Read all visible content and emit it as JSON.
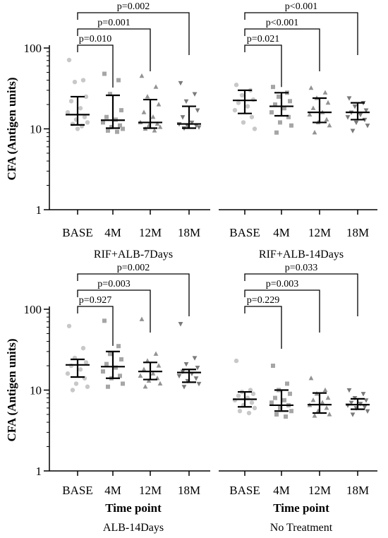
{
  "colors": {
    "BASE": "#c8c8c8",
    "4M": "#a6a6a6",
    "12M": "#939393",
    "18M": "#7a7a7a",
    "line": "#000000"
  },
  "chart_data": [
    {
      "type": "scatter",
      "group": "RIF+ALB-7Days",
      "ylabel": "CFA (Antigen units)",
      "xlabel": "",
      "categories": [
        "BASE",
        "4M",
        "12M",
        "18M"
      ],
      "yscale": "log",
      "ylim": [
        1,
        100
      ],
      "yticks": [
        1,
        10,
        100
      ],
      "summary": {
        "median": [
          15,
          12.8,
          12,
          11.5
        ],
        "q1": [
          11.2,
          10.2,
          10.2,
          10.2
        ],
        "q3": [
          25,
          26,
          23,
          19
        ]
      },
      "points": [
        [
          71,
          40,
          38,
          25,
          22,
          18,
          16,
          14,
          13,
          12,
          11.5,
          10.8,
          10
        ],
        [
          48,
          40,
          27,
          17,
          14,
          13,
          12,
          11,
          10.5,
          10,
          9.5,
          9.2
        ],
        [
          45,
          33,
          25,
          20,
          16,
          14,
          12,
          11.5,
          11,
          10.5,
          10,
          9.5
        ],
        [
          37,
          27,
          22,
          17,
          14,
          12,
          11.5,
          11,
          10.8,
          10.5,
          10.2
        ]
      ],
      "comparisons": [
        {
          "label": "p=0.010",
          "to": "4M"
        },
        {
          "label": "p=0.001",
          "to": "12M"
        },
        {
          "label": "p=0.002",
          "to": "18M"
        }
      ]
    },
    {
      "type": "scatter",
      "group": "RIF+ALB-14Days",
      "ylabel": "",
      "xlabel": "",
      "categories": [
        "BASE",
        "4M",
        "12M",
        "18M"
      ],
      "yscale": "log",
      "ylim": [
        1,
        100
      ],
      "yticks": [
        1,
        10,
        100
      ],
      "summary": {
        "median": [
          22.5,
          19,
          16,
          16
        ],
        "q1": [
          15.5,
          14.5,
          12,
          13
        ],
        "q3": [
          30,
          28,
          24,
          21
        ]
      },
      "points": [
        [
          35,
          30,
          26,
          23,
          21,
          19,
          17,
          14,
          12,
          10
        ],
        [
          33,
          28,
          25,
          22,
          20,
          18,
          16,
          14,
          12,
          11,
          9
        ],
        [
          32,
          28,
          24,
          21,
          18,
          16,
          15,
          13,
          12,
          11,
          9
        ],
        [
          24,
          21,
          19,
          17,
          16,
          15,
          14,
          13,
          12,
          11,
          9.5
        ]
      ],
      "comparisons": [
        {
          "label": "p=0.021",
          "to": "4M"
        },
        {
          "label": "p<0.001",
          "to": "12M"
        },
        {
          "label": "p<0.001",
          "to": "18M"
        }
      ]
    },
    {
      "type": "scatter",
      "group": "ALB-14Days",
      "ylabel": "CFA (Antigen units)",
      "xlabel": "Time point",
      "categories": [
        "BASE",
        "4M",
        "12M",
        "18M"
      ],
      "yscale": "log",
      "ylim": [
        1,
        100
      ],
      "yticks": [
        1,
        10,
        100
      ],
      "summary": {
        "median": [
          20.5,
          19.5,
          17,
          16.5
        ],
        "q1": [
          14.5,
          14,
          13.5,
          12.5
        ],
        "q3": [
          24,
          30,
          22,
          18
        ]
      },
      "points": [
        [
          62,
          33,
          25,
          22,
          20,
          18,
          16,
          14,
          12,
          11,
          10
        ],
        [
          72,
          35,
          28,
          24,
          21,
          19,
          17,
          15,
          14,
          12,
          11
        ],
        [
          75,
          28,
          23,
          20,
          18,
          16,
          15,
          14,
          13,
          12,
          11
        ],
        [
          66,
          25,
          21,
          19,
          17,
          16,
          15,
          14,
          13,
          12,
          11
        ]
      ],
      "comparisons": [
        {
          "label": "p=0.927",
          "to": "4M"
        },
        {
          "label": "p=0.003",
          "to": "12M"
        },
        {
          "label": "p=0.002",
          "to": "18M"
        }
      ]
    },
    {
      "type": "scatter",
      "group": "No Treatment",
      "ylabel": "",
      "xlabel": "Time point",
      "categories": [
        "BASE",
        "4M",
        "12M",
        "18M"
      ],
      "yscale": "log",
      "ylim": [
        1,
        100
      ],
      "yticks": [
        1,
        10,
        100
      ],
      "summary": {
        "median": [
          7.7,
          6.5,
          6.6,
          6.6
        ],
        "q1": [
          6.2,
          5.5,
          5.2,
          5.8
        ],
        "q3": [
          9.5,
          10,
          9.2,
          7.8
        ]
      },
      "points": [
        [
          23,
          10,
          9.5,
          9,
          8.5,
          8,
          7.5,
          7,
          6.5,
          6,
          5.5,
          5.2
        ],
        [
          20,
          12,
          10,
          9,
          8,
          7.5,
          7,
          6.5,
          6,
          5.5,
          5,
          4.7
        ],
        [
          14,
          10,
          9,
          8,
          7.5,
          7,
          6.5,
          6,
          5.5,
          5,
          4.8
        ],
        [
          10,
          9,
          8,
          7.5,
          7,
          6.8,
          6.5,
          6.2,
          6,
          5.5,
          5
        ]
      ],
      "comparisons": [
        {
          "label": "p=0.229",
          "to": "4M"
        },
        {
          "label": "p=0.003",
          "to": "12M"
        },
        {
          "label": "p=0.033",
          "to": "18M"
        }
      ]
    }
  ]
}
